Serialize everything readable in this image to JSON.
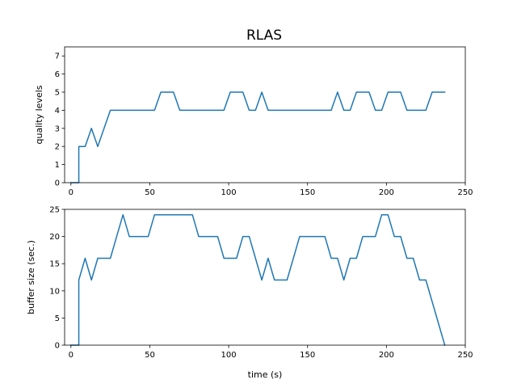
{
  "chart_data": [
    {
      "type": "line",
      "title": "RLAS",
      "xlabel": "",
      "ylabel": "quality levels",
      "xlim": [
        -4,
        250
      ],
      "ylim": [
        0,
        7.5
      ],
      "xticks": [
        0,
        50,
        100,
        150,
        200,
        250
      ],
      "yticks": [
        0,
        1,
        2,
        3,
        4,
        5,
        6,
        7
      ],
      "grid": false,
      "legend": "none",
      "color": "#1f77b4",
      "series": [
        {
          "x": [
            0,
            4,
            5,
            5,
            9,
            13,
            17,
            21,
            25,
            29,
            41,
            53,
            57,
            61,
            65,
            69,
            81,
            97,
            101,
            105,
            109,
            113,
            117,
            121,
            125,
            133,
            149,
            165,
            169,
            173,
            177,
            181,
            185,
            189,
            193,
            197,
            201,
            205,
            209,
            213,
            217,
            221,
            225,
            229,
            233,
            237
          ],
          "y": [
            0,
            0,
            0,
            2,
            2,
            3,
            2,
            3,
            4,
            4,
            4,
            4,
            5,
            5,
            5,
            4,
            4,
            4,
            5,
            5,
            5,
            4,
            4,
            5,
            4,
            4,
            4,
            4,
            5,
            4,
            4,
            5,
            5,
            5,
            4,
            4,
            5,
            5,
            5,
            4,
            4,
            4,
            4,
            5,
            5,
            5
          ]
        }
      ]
    },
    {
      "type": "line",
      "title": "",
      "xlabel": "time (s)",
      "ylabel": "buffer size (sec.)",
      "xlim": [
        -4,
        250
      ],
      "ylim": [
        0,
        25
      ],
      "xticks": [
        0,
        50,
        100,
        150,
        200,
        250
      ],
      "yticks": [
        0,
        5,
        10,
        15,
        20,
        25
      ],
      "grid": false,
      "legend": "none",
      "color": "#1f77b4",
      "series": [
        {
          "x": [
            0,
            4,
            5,
            5,
            9,
            13,
            17,
            21,
            25,
            29,
            33,
            37,
            41,
            45,
            49,
            53,
            57,
            61,
            65,
            69,
            73,
            77,
            81,
            85,
            89,
            93,
            97,
            101,
            105,
            109,
            113,
            117,
            121,
            125,
            129,
            133,
            137,
            141,
            145,
            149,
            153,
            157,
            161,
            165,
            169,
            173,
            177,
            181,
            185,
            189,
            193,
            197,
            201,
            205,
            209,
            213,
            217,
            221,
            225,
            229,
            233,
            237
          ],
          "y": [
            0,
            0,
            0,
            12,
            16,
            12,
            16,
            16,
            16,
            20,
            24,
            20,
            20,
            20,
            20,
            24,
            24,
            24,
            24,
            24,
            24,
            24,
            20,
            20,
            20,
            20,
            16,
            16,
            16,
            20,
            20,
            16,
            12,
            16,
            12,
            12,
            12,
            16,
            20,
            20,
            20,
            20,
            20,
            16,
            16,
            12,
            16,
            16,
            20,
            20,
            20,
            24,
            24,
            20,
            20,
            16,
            16,
            12,
            12,
            8,
            4,
            0
          ]
        }
      ]
    }
  ]
}
